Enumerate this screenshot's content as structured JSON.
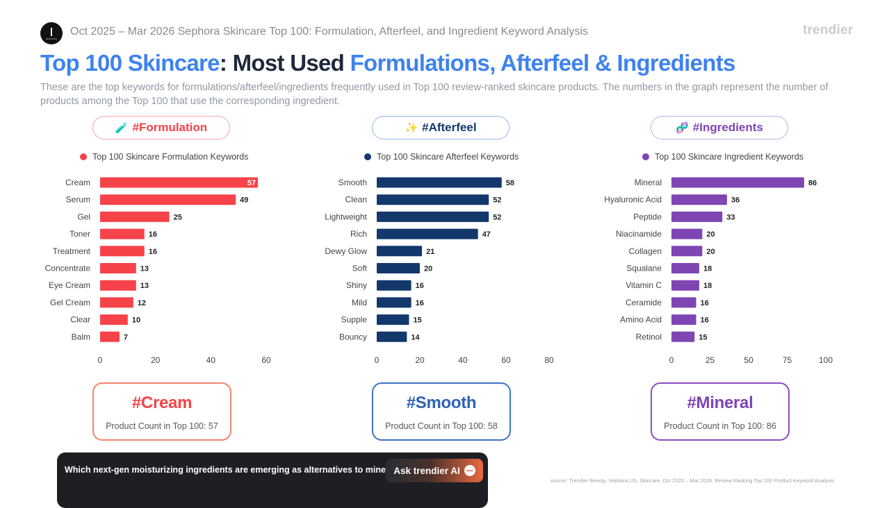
{
  "header": {
    "logo_text": "SEPHORA",
    "text": "Oct 2025 – Mar 2026 Sephora Skincare Top 100: Formulation, Afterfeel, and Ingredient Keyword Analysis",
    "brand": "trendier"
  },
  "title": {
    "part1": "Top 100 Skincare",
    "part2": ": Most Used ",
    "part3": "Formulations, Afterfeel & Ingredients"
  },
  "subtitle": "These are the top keywords for formulations/afterfeel/ingredients frequently used in Top 100 review-ranked skincare products. The numbers in the graph represent the number of products among the Top 100 that use the corresponding ingredient.",
  "colors": {
    "formulation": "#f64249",
    "afterfeel": "#12386c",
    "ingredients": "#7e45b3",
    "title_blue": "#3e82ee",
    "title_dark": "#1e2a3b"
  },
  "sections": [
    {
      "pill": "#Formulation",
      "icon": "test-tube-icon",
      "icon_glyph": "🧪",
      "legend": "Top 100 Skincare Formulation Keywords",
      "card_title": "#Cream",
      "card_count": "Product Count in Top 100: 57"
    },
    {
      "pill": "#Afterfeel",
      "icon": "sparkles-icon",
      "icon_glyph": "✨",
      "legend": "Top 100 Skincare Afterfeel Keywords",
      "card_title": "#Smooth",
      "card_count": "Product Count in Top 100: 58"
    },
    {
      "pill": "#Ingredients",
      "icon": "dna-icon",
      "icon_glyph": "🧬",
      "legend": "Top 100 Skincare Ingredient Keywords",
      "card_title": "#Mineral",
      "card_count": "Product Count in Top 100: 86"
    }
  ],
  "chart_data": [
    {
      "type": "bar",
      "orientation": "horizontal",
      "categories": [
        "Cream",
        "Serum",
        "Gel",
        "Toner",
        "Treatment",
        "Concentrate",
        "Eye Cream",
        "Gel Cream",
        "Clear",
        "Balm"
      ],
      "values": [
        57,
        49,
        25,
        16,
        16,
        13,
        13,
        12,
        10,
        7
      ],
      "series": [
        {
          "name": "Top 100 Skincare Formulation Keywords",
          "values": [
            57,
            49,
            25,
            16,
            16,
            13,
            13,
            12,
            10,
            7
          ]
        }
      ],
      "xlim": [
        0,
        60
      ],
      "xticks": [
        0,
        20,
        40,
        60
      ],
      "legend": "top",
      "grid": false,
      "color": "#f64249"
    },
    {
      "type": "bar",
      "orientation": "horizontal",
      "categories": [
        "Smooth",
        "Clean",
        "Lightweight",
        "Rich",
        "Dewy Glow",
        "Soft",
        "Shiny",
        "Mild",
        "Supple",
        "Bouncy"
      ],
      "values": [
        58,
        52,
        52,
        47,
        21,
        20,
        16,
        16,
        15,
        14
      ],
      "series": [
        {
          "name": "Top 100 Skincare Afterfeel Keywords",
          "values": [
            58,
            52,
            52,
            47,
            21,
            20,
            16,
            16,
            15,
            14
          ]
        }
      ],
      "xlim": [
        0,
        80
      ],
      "xticks": [
        0,
        20,
        40,
        60,
        80
      ],
      "legend": "top",
      "grid": false,
      "color": "#12386c"
    },
    {
      "type": "bar",
      "orientation": "horizontal",
      "categories": [
        "Mineral",
        "Hyaluronic Acid",
        "Peptide",
        "Niacinamide",
        "Collagen",
        "Squalane",
        "Vitamin C",
        "Ceramide",
        "Amino Acid",
        "Retinol"
      ],
      "values": [
        86,
        36,
        33,
        20,
        20,
        18,
        18,
        16,
        16,
        15
      ],
      "series": [
        {
          "name": "Top 100 Skincare Ingredient Keywords",
          "values": [
            86,
            36,
            33,
            20,
            20,
            18,
            18,
            16,
            16,
            15
          ]
        }
      ],
      "xlim": [
        0,
        100
      ],
      "xticks": [
        0,
        25,
        50,
        75,
        100
      ],
      "legend": "top",
      "grid": false,
      "color": "#7e45b3"
    }
  ],
  "ask": {
    "question": "Which next-gen moisturizing ingredients are emerging as alternatives to mineral?",
    "button": "Ask trendier AI",
    "button_icon": "chat-bubble-icon",
    "button_glyph": "•••"
  },
  "source": "source: Trendier Beauty, Sephora US, Skincare, Oct 2025 – Mar 2026, Review Ranking Top 100 Product Keyword Analysis"
}
